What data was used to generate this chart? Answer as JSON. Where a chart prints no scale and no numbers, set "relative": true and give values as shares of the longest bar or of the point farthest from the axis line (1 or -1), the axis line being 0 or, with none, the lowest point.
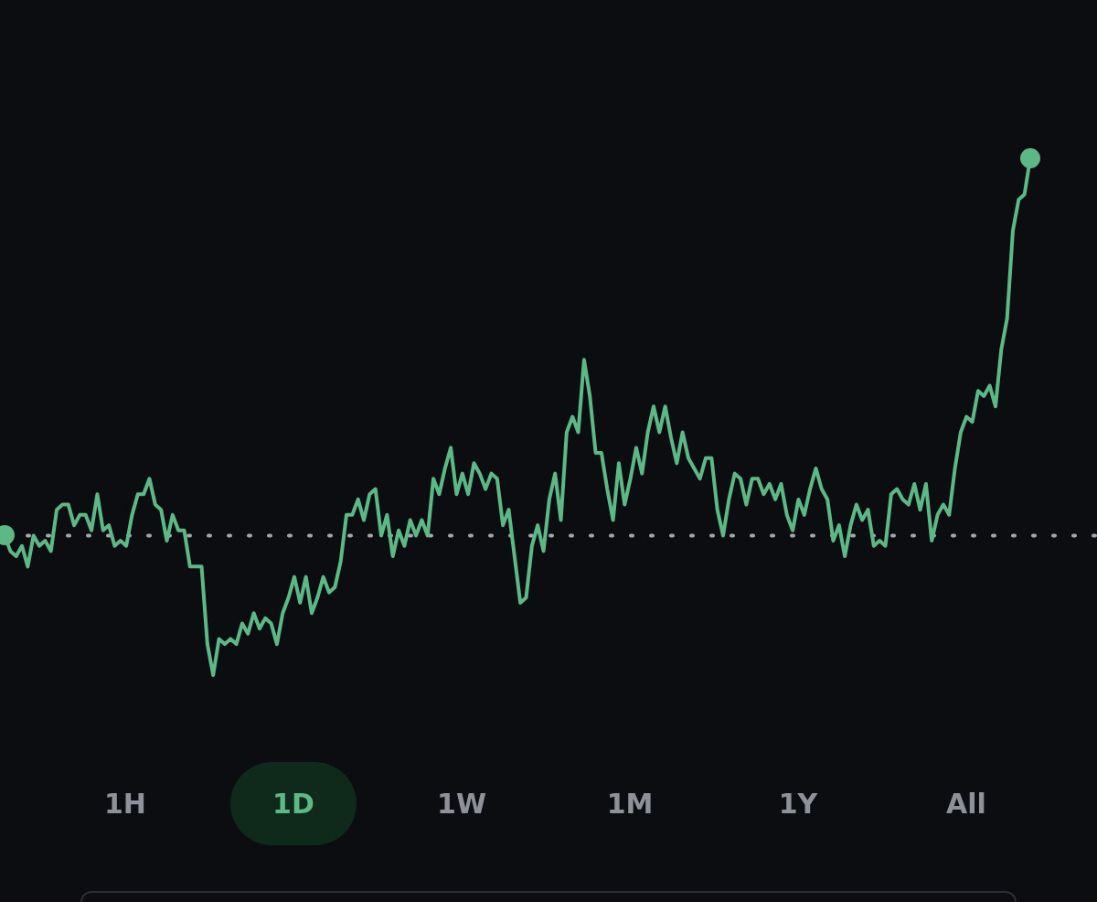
{
  "chart_data": {
    "type": "line",
    "relative": true,
    "color": "#5cb884",
    "categories": [
      null,
      null,
      null,
      null,
      null,
      null,
      null,
      null,
      null,
      null,
      null,
      null,
      null,
      null,
      null,
      null,
      null,
      null,
      null,
      null,
      null,
      null,
      null,
      null,
      null,
      null,
      null,
      null,
      null,
      null,
      null,
      null,
      null,
      null,
      null,
      null,
      null,
      null,
      null,
      null,
      null,
      null,
      null,
      null,
      null,
      null,
      null,
      null,
      null,
      null,
      null,
      null,
      null,
      null,
      null,
      null,
      null,
      null,
      null,
      null,
      null,
      null,
      null,
      null,
      null,
      null,
      null,
      null,
      null,
      null,
      null,
      null,
      null,
      null,
      null,
      null,
      null,
      null,
      null,
      null,
      null,
      null,
      null,
      null,
      null,
      null,
      null,
      null,
      null,
      null,
      null,
      null,
      null,
      null,
      null,
      null,
      null,
      null,
      null,
      null,
      null,
      null,
      null,
      null,
      null,
      null,
      null,
      null,
      null,
      null,
      null,
      null,
      null,
      null,
      null,
      null,
      null,
      null,
      null,
      null,
      null,
      null,
      null,
      null,
      null,
      null,
      null,
      null,
      null,
      null,
      null,
      null,
      null,
      null,
      null,
      null,
      null,
      null,
      null,
      null,
      null,
      null,
      null,
      null,
      null,
      null,
      null,
      null,
      null,
      null,
      null,
      null,
      null,
      null,
      null,
      null,
      null,
      null,
      null,
      null,
      null,
      null,
      null,
      null,
      null,
      null,
      null,
      null,
      null,
      null,
      null,
      null,
      null,
      null,
      null,
      null,
      null,
      null
    ],
    "values": [
      0.27,
      0.24,
      0.23,
      0.25,
      0.21,
      0.27,
      0.25,
      0.26,
      0.24,
      0.32,
      0.33,
      0.33,
      0.29,
      0.31,
      0.31,
      0.28,
      0.35,
      0.28,
      0.29,
      0.25,
      0.26,
      0.25,
      0.31,
      0.35,
      0.35,
      0.38,
      0.33,
      0.32,
      0.26,
      0.31,
      0.28,
      0.28,
      0.21,
      0.21,
      0.21,
      0.06,
      0,
      0.07,
      0.06,
      0.07,
      0.06,
      0.1,
      0.08,
      0.12,
      0.09,
      0.11,
      0.1,
      0.06,
      0.12,
      0.15,
      0.19,
      0.14,
      0.19,
      0.12,
      0.15,
      0.19,
      0.16,
      0.17,
      0.22,
      0.31,
      0.31,
      0.34,
      0.3,
      0.35,
      0.36,
      0.27,
      0.31,
      0.23,
      0.28,
      0.25,
      0.3,
      0.27,
      0.3,
      0.27,
      0.38,
      0.35,
      0.4,
      0.44,
      0.35,
      0.39,
      0.35,
      0.41,
      0.39,
      0.36,
      0.39,
      0.38,
      0.29,
      0.32,
      0.23,
      0.14,
      0.15,
      0.25,
      0.29,
      0.24,
      0.34,
      0.39,
      0.3,
      0.47,
      0.5,
      0.47,
      0.61,
      0.54,
      0.43,
      0.43,
      0.36,
      0.3,
      0.41,
      0.33,
      0.38,
      0.44,
      0.39,
      0.47,
      0.52,
      0.47,
      0.52,
      0.46,
      0.41,
      0.47,
      0.42,
      0.4,
      0.38,
      0.42,
      0.42,
      0.32,
      0.27,
      0.34,
      0.39,
      0.38,
      0.33,
      0.38,
      0.38,
      0.35,
      0.37,
      0.34,
      0.37,
      0.31,
      0.28,
      0.34,
      0.31,
      0.36,
      0.4,
      0.36,
      0.34,
      0.26,
      0.29,
      0.23,
      0.29,
      0.33,
      0.3,
      0.32,
      0.25,
      0.26,
      0.25,
      0.35,
      0.36,
      0.34,
      0.33,
      0.37,
      0.32,
      0.37,
      0.26,
      0.31,
      0.33,
      0.31,
      0.4,
      0.47,
      0.5,
      0.49,
      0.55,
      0.54,
      0.56,
      0.52,
      0.63,
      0.69,
      0.86,
      0.92,
      0.93,
      1
    ],
    "ref_lines": [
      {
        "axis": "y",
        "value": 0.27,
        "color": "#a4a6ad",
        "line_style": "dotted"
      }
    ],
    "annotations": [
      "1H",
      "1D",
      "1W",
      "1M",
      "1Y",
      "All"
    ]
  }
}
